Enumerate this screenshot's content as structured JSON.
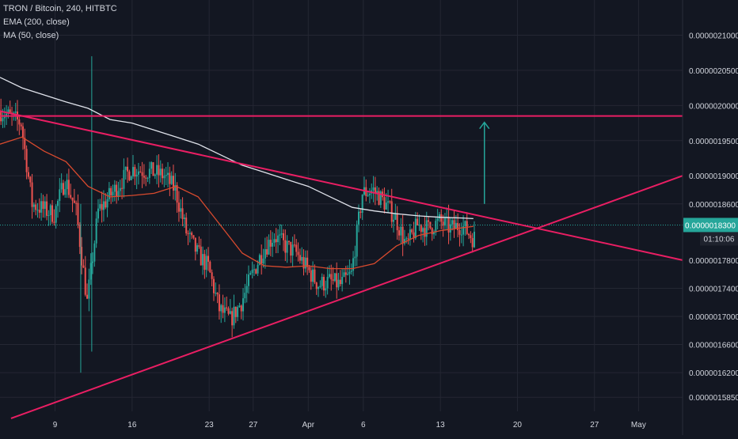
{
  "header": {
    "symbol_line": "TRON / Bitcoin, 240, HITBTC",
    "ema_label": "EMA (200, close)",
    "ma_label": "MA (50, close)"
  },
  "price_tag": {
    "price": "0.0000018300",
    "countdown": "01:10:06"
  },
  "colors": {
    "background": "#131722",
    "grid": "#242733",
    "up_candle": "#26a69a",
    "down_candle": "#ef5350",
    "ema200": "#e0e3eb",
    "ma50": "#d84a2e",
    "trendline": "#e91e63",
    "target_arrow": "#26a69a",
    "axis_text": "#d1d4dc",
    "current_price_line": "#26a69a"
  },
  "chart_data": {
    "type": "candlestick",
    "x_tick_labels": [
      "9",
      "16",
      "23",
      "27",
      "Apr",
      "6",
      "13",
      "20",
      "27",
      "May"
    ],
    "y_tick_labels": [
      "0.0000021000",
      "0.0000020500",
      "0.0000020000",
      "0.0000019500",
      "0.0000019000",
      "0.0000018600",
      "0.0000017800",
      "0.0000017400",
      "0.0000017000",
      "0.0000016600",
      "0.0000016200",
      "0.0000015850"
    ],
    "y_ticks": [
      2.1e-06,
      2.05e-06,
      2e-06,
      1.95e-06,
      1.9e-06,
      1.86e-06,
      1.78e-06,
      1.74e-06,
      1.7e-06,
      1.66e-06,
      1.62e-06,
      1.585e-06
    ],
    "ylim": [
      1.565e-06,
      2.15e-06
    ],
    "xlim": [
      "2020-03-04",
      "2020-05-05"
    ],
    "x_ticks": [
      "2020-03-09",
      "2020-03-16",
      "2020-03-23",
      "2020-03-27",
      "2020-04-01",
      "2020-04-06",
      "2020-04-13",
      "2020-04-20",
      "2020-04-27",
      "2020-05-01"
    ],
    "anchors": [
      [
        "2020-03-04",
        1.993e-06
      ],
      [
        "2020-03-06",
        1.975e-06
      ],
      [
        "2020-03-07",
        1.86e-06
      ],
      [
        "2020-03-09",
        1.845e-06
      ],
      [
        "2020-03-10",
        1.895e-06
      ],
      [
        "2020-03-11",
        1.85e-06
      ],
      [
        "2020-03-12",
        1.72e-06
      ],
      [
        "2020-03-13",
        1.85e-06
      ],
      [
        "2020-03-15",
        1.89e-06
      ],
      [
        "2020-03-16",
        1.91e-06
      ],
      [
        "2020-03-18",
        1.905e-06
      ],
      [
        "2020-03-19",
        1.9e-06
      ],
      [
        "2020-03-20",
        1.88e-06
      ],
      [
        "2020-03-21",
        1.82e-06
      ],
      [
        "2020-03-22",
        1.79e-06
      ],
      [
        "2020-03-23",
        1.77e-06
      ],
      [
        "2020-03-24",
        1.71e-06
      ],
      [
        "2020-03-25",
        1.695e-06
      ],
      [
        "2020-03-26",
        1.72e-06
      ],
      [
        "2020-03-27",
        1.76e-06
      ],
      [
        "2020-03-28",
        1.795e-06
      ],
      [
        "2020-03-29",
        1.815e-06
      ],
      [
        "2020-03-30",
        1.8e-06
      ],
      [
        "2020-03-31",
        1.79e-06
      ],
      [
        "2020-04-02",
        1.745e-06
      ],
      [
        "2020-04-03",
        1.75e-06
      ],
      [
        "2020-04-04",
        1.745e-06
      ],
      [
        "2020-04-05",
        1.76e-06
      ],
      [
        "2020-04-06",
        1.875e-06
      ],
      [
        "2020-04-07",
        1.88e-06
      ],
      [
        "2020-04-08",
        1.862e-06
      ],
      [
        "2020-04-09",
        1.84e-06
      ],
      [
        "2020-04-10",
        1.8e-06
      ],
      [
        "2020-04-11",
        1.83e-06
      ],
      [
        "2020-04-12",
        1.825e-06
      ],
      [
        "2020-04-13",
        1.835e-06
      ],
      [
        "2020-04-14",
        1.825e-06
      ],
      [
        "2020-04-15",
        1.83e-06
      ],
      [
        "2020-04-16",
        1.812e-06
      ]
    ],
    "ema200": [
      [
        "2020-03-04",
        2.04e-06
      ],
      [
        "2020-03-06",
        2.025e-06
      ],
      [
        "2020-03-08",
        2.015e-06
      ],
      [
        "2020-03-10",
        2.005e-06
      ],
      [
        "2020-03-12",
        1.996e-06
      ],
      [
        "2020-03-14",
        1.98e-06
      ],
      [
        "2020-03-16",
        1.975e-06
      ],
      [
        "2020-03-18",
        1.965e-06
      ],
      [
        "2020-03-20",
        1.955e-06
      ],
      [
        "2020-03-22",
        1.945e-06
      ],
      [
        "2020-03-24",
        1.93e-06
      ],
      [
        "2020-03-26",
        1.915e-06
      ],
      [
        "2020-03-28",
        1.905e-06
      ],
      [
        "2020-03-30",
        1.895e-06
      ],
      [
        "2020-04-01",
        1.885e-06
      ],
      [
        "2020-04-03",
        1.87e-06
      ],
      [
        "2020-04-05",
        1.855e-06
      ],
      [
        "2020-04-07",
        1.85e-06
      ],
      [
        "2020-04-09",
        1.846e-06
      ],
      [
        "2020-04-11",
        1.843e-06
      ],
      [
        "2020-04-13",
        1.841e-06
      ],
      [
        "2020-04-15",
        1.84e-06
      ],
      [
        "2020-04-16",
        1.839e-06
      ]
    ],
    "ma50": [
      [
        "2020-03-04",
        1.945e-06
      ],
      [
        "2020-03-06",
        1.955e-06
      ],
      [
        "2020-03-08",
        1.935e-06
      ],
      [
        "2020-03-10",
        1.92e-06
      ],
      [
        "2020-03-12",
        1.885e-06
      ],
      [
        "2020-03-14",
        1.87e-06
      ],
      [
        "2020-03-16",
        1.872e-06
      ],
      [
        "2020-03-18",
        1.875e-06
      ],
      [
        "2020-03-20",
        1.885e-06
      ],
      [
        "2020-03-22",
        1.87e-06
      ],
      [
        "2020-03-24",
        1.83e-06
      ],
      [
        "2020-03-26",
        1.79e-06
      ],
      [
        "2020-03-28",
        1.772e-06
      ],
      [
        "2020-03-30",
        1.77e-06
      ],
      [
        "2020-04-01",
        1.772e-06
      ],
      [
        "2020-04-03",
        1.768e-06
      ],
      [
        "2020-04-05",
        1.768e-06
      ],
      [
        "2020-04-07",
        1.775e-06
      ],
      [
        "2020-04-09",
        1.8e-06
      ],
      [
        "2020-04-11",
        1.815e-06
      ],
      [
        "2020-04-13",
        1.822e-06
      ],
      [
        "2020-04-15",
        1.826e-06
      ],
      [
        "2020-04-16",
        1.828e-06
      ]
    ],
    "spikes": [
      {
        "date": "2020-03-12",
        "high": 2.07e-06,
        "low": 1.65e-06
      },
      {
        "date": "2020-03-11",
        "high": 1.86e-06,
        "low": 1.62e-06
      }
    ],
    "drawings": [
      {
        "name": "upper-trendline",
        "from": [
          "2020-03-04",
          1.992e-06
        ],
        "to": [
          "2020-05-05",
          1.78e-06
        ]
      },
      {
        "name": "lower-trendline",
        "from": [
          "2020-03-05",
          1.555e-06
        ],
        "to": [
          "2020-05-05",
          1.9e-06
        ]
      },
      {
        "name": "resistance-line",
        "from": [
          "2020-03-04",
          1.985e-06
        ],
        "to": [
          "2020-05-05",
          1.985e-06
        ]
      },
      {
        "name": "target-arrow",
        "from": [
          "2020-04-17",
          1.86e-06
        ],
        "to": [
          "2020-04-17",
          1.976e-06
        ]
      }
    ],
    "current_price": 1.83e-06,
    "grid": true
  }
}
